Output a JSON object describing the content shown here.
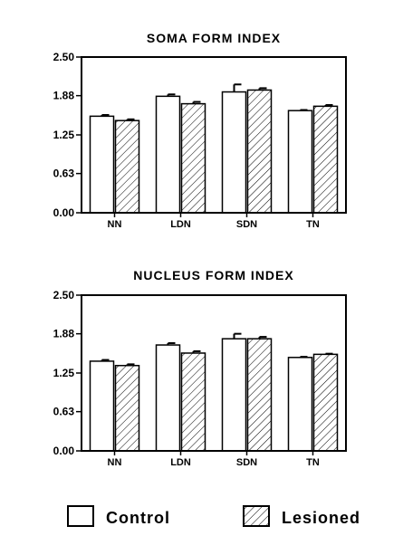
{
  "chart_data": [
    {
      "type": "bar",
      "title": "SOMA FORM INDEX",
      "categories": [
        "NN",
        "LDN",
        "SDN",
        "TN"
      ],
      "ylim": [
        0,
        2.5
      ],
      "yticks": [
        "0.00",
        "0.63",
        "1.25",
        "1.88",
        "2.50"
      ],
      "series": [
        {
          "name": "Control",
          "values": [
            1.55,
            1.87,
            1.94,
            1.64
          ],
          "errors": [
            0.02,
            0.03,
            0.12,
            0.01
          ]
        },
        {
          "name": "Lesioned",
          "values": [
            1.48,
            1.75,
            1.97,
            1.71
          ],
          "errors": [
            0.02,
            0.03,
            0.03,
            0.02
          ]
        }
      ],
      "grid": false,
      "legend": "bottom"
    },
    {
      "type": "bar",
      "title": "NUCLEUS FORM INDEX",
      "categories": [
        "NN",
        "LDN",
        "SDN",
        "TN"
      ],
      "ylim": [
        0,
        2.5
      ],
      "yticks": [
        "0.00",
        "0.63",
        "1.25",
        "1.88",
        "2.50"
      ],
      "series": [
        {
          "name": "Control",
          "values": [
            1.44,
            1.7,
            1.8,
            1.5
          ],
          "errors": [
            0.02,
            0.03,
            0.08,
            0.01
          ]
        },
        {
          "name": "Lesioned",
          "values": [
            1.37,
            1.57,
            1.8,
            1.55
          ],
          "errors": [
            0.02,
            0.03,
            0.03,
            0.01
          ]
        }
      ],
      "grid": false,
      "legend": "bottom"
    }
  ],
  "legend": {
    "items": [
      {
        "label": "Control",
        "fill": "solid",
        "color": "#ffffff"
      },
      {
        "label": "Lesioned",
        "fill": "hatched",
        "color": "#ffffff"
      }
    ]
  }
}
